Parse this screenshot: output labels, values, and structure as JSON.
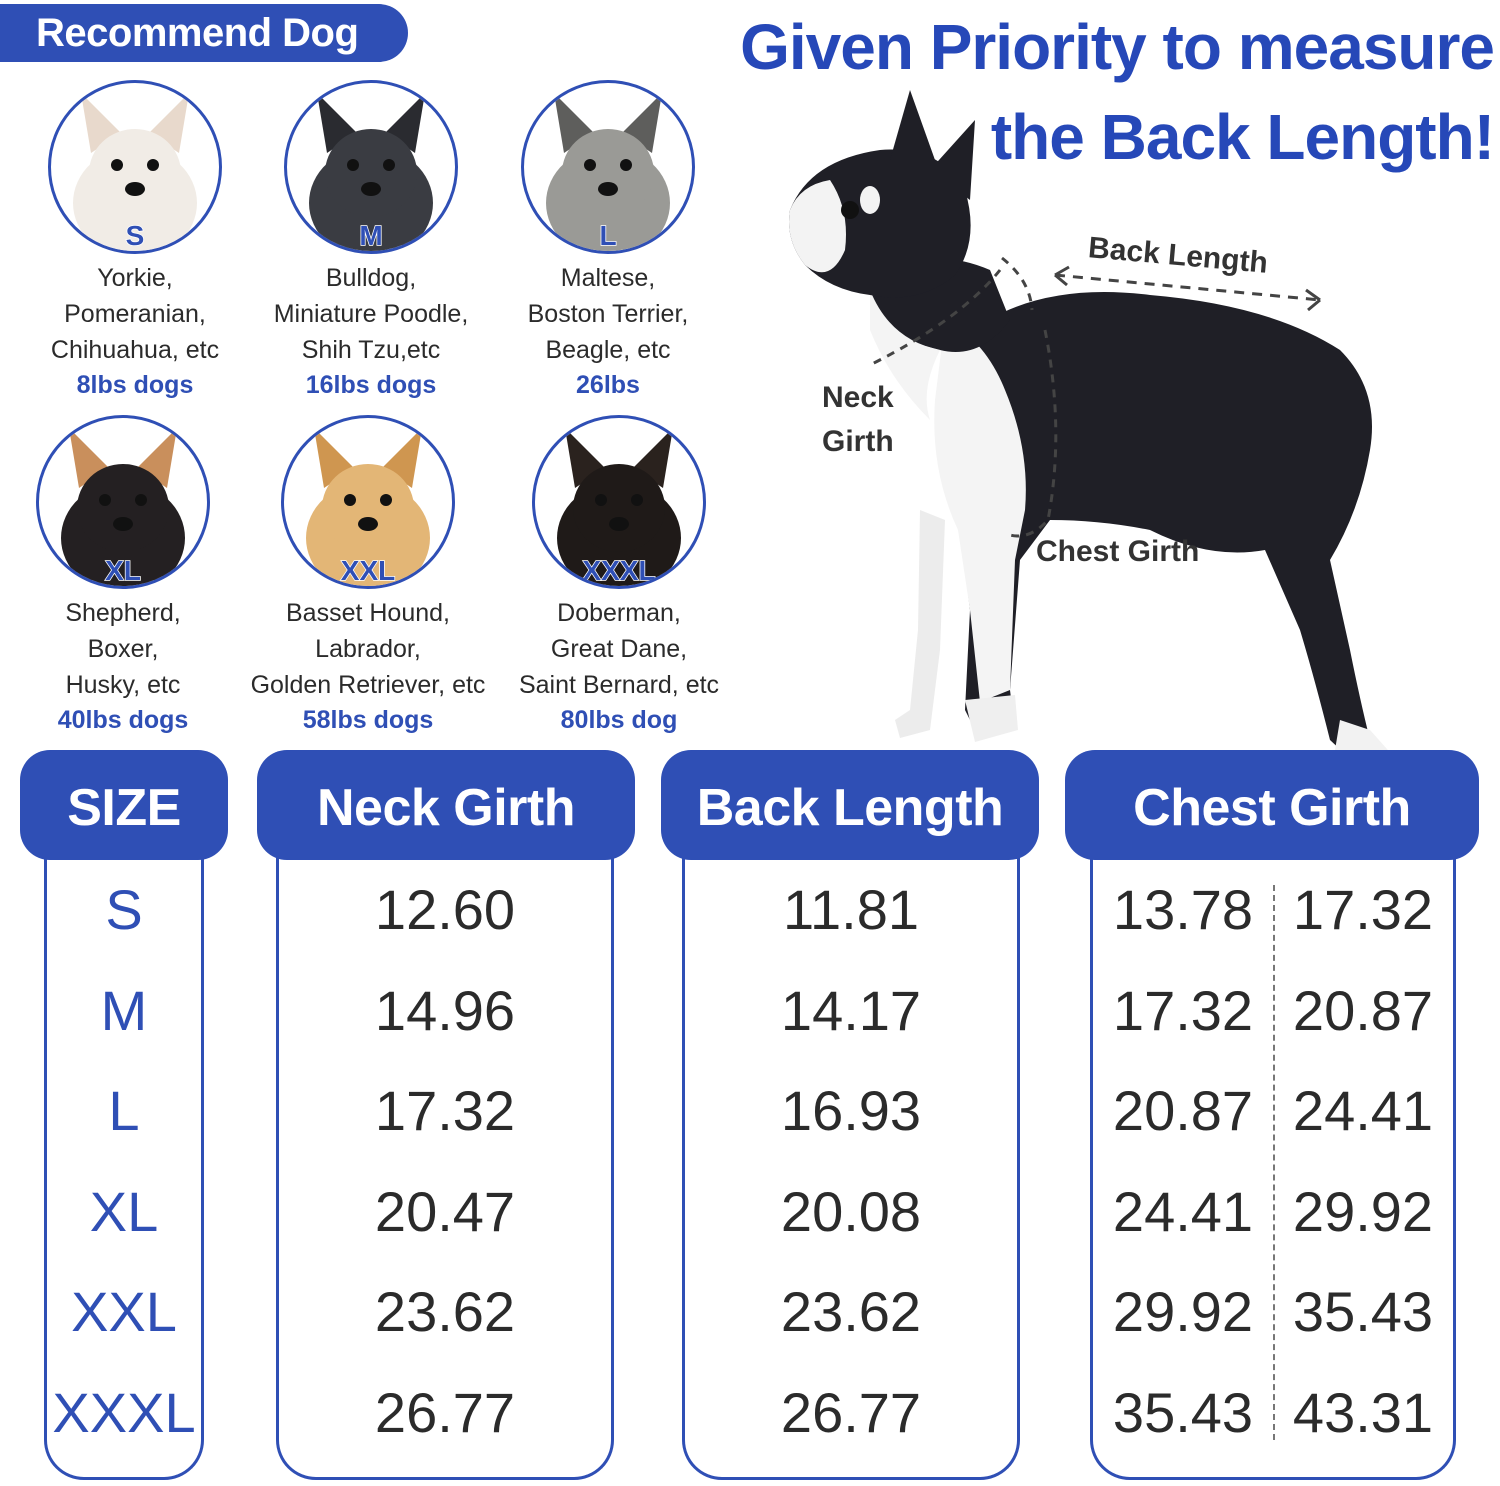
{
  "banner": {
    "label": "Recommend Dog"
  },
  "headline": {
    "line1": "Given Priority to measure",
    "line2": "the Back Length!"
  },
  "dogs": [
    {
      "size": "S",
      "breeds": [
        "Yorkie,",
        "Pomeranian,",
        "Chihuahua, etc"
      ],
      "weight": "8lbs dogs",
      "fur": "#f1ece6",
      "ear": "#e8d9cc"
    },
    {
      "size": "M",
      "breeds": [
        "Bulldog,",
        "Miniature Poodle,",
        "Shih Tzu,etc"
      ],
      "weight": "16lbs dogs",
      "fur": "#3a3c42",
      "ear": "#2a2b30"
    },
    {
      "size": "L",
      "breeds": [
        "Maltese,",
        "Boston Terrier,",
        "Beagle, etc"
      ],
      "weight": "26lbs",
      "fur": "#9a9a96",
      "ear": "#5e5e5c"
    },
    {
      "size": "XL",
      "breeds": [
        "Shepherd,",
        "Boxer,",
        "Husky, etc"
      ],
      "weight": "40lbs dogs",
      "fur": "#242022",
      "ear": "#c98f5c"
    },
    {
      "size": "XXL",
      "breeds": [
        "Basset Hound,",
        "Labrador,",
        "Golden Retriever, etc"
      ],
      "weight": "58lbs dogs",
      "fur": "#e3b676",
      "ear": "#cf9650"
    },
    {
      "size": "XXXL",
      "breeds": [
        "Doberman,",
        "Great Dane,",
        "Saint Bernard, etc"
      ],
      "weight": "80lbs dog",
      "fur": "#1f1a18",
      "ear": "#2a221e"
    }
  ],
  "measure_labels": {
    "back_length": "Back Length",
    "neck_line1": "Neck",
    "neck_line2": "Girth",
    "chest_girth": "Chest Girth"
  },
  "table": {
    "headers": {
      "size": "SIZE",
      "neck": "Neck Girth",
      "back": "Back Length",
      "chest": "Chest Girth"
    },
    "rows": [
      {
        "size": "S",
        "neck": "12.60",
        "back": "11.81",
        "chest_min": "13.78",
        "chest_max": "17.32"
      },
      {
        "size": "M",
        "neck": "14.96",
        "back": "14.17",
        "chest_min": "17.32",
        "chest_max": "20.87"
      },
      {
        "size": "L",
        "neck": "17.32",
        "back": "16.93",
        "chest_min": "20.87",
        "chest_max": "24.41"
      },
      {
        "size": "XL",
        "neck": "20.47",
        "back": "20.08",
        "chest_min": "24.41",
        "chest_max": "29.92"
      },
      {
        "size": "XXL",
        "neck": "23.62",
        "back": "23.62",
        "chest_min": "29.92",
        "chest_max": "35.43"
      },
      {
        "size": "XXXL",
        "neck": "26.77",
        "back": "26.77",
        "chest_min": "35.43",
        "chest_max": "43.31"
      }
    ]
  },
  "colors": {
    "accent": "#2f4fb5",
    "headline": "#2648b8",
    "text": "#2b2b2b"
  }
}
